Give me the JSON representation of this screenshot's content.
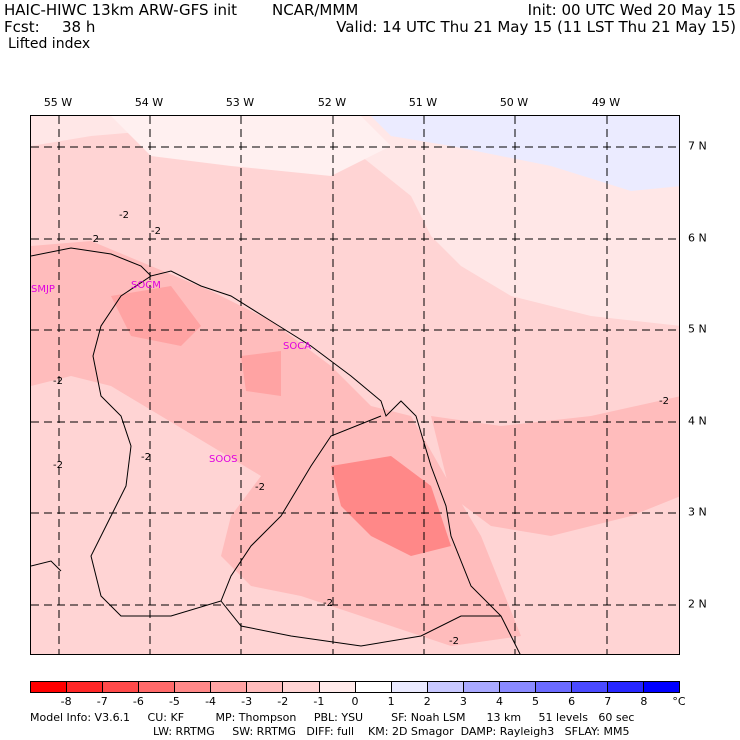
{
  "header": {
    "model": "HAIC-HIWC 13km ARW-GFS init",
    "org": "NCAR/MMM",
    "fcst_label": "Fcst:",
    "fcst_value": "38 h",
    "init": "Init: 00 UTC Wed 20 May 15",
    "valid": "Valid: 14 UTC Thu 21 May 15 (11 LST Thu 21 May 15)",
    "field": "Lifted index"
  },
  "map": {
    "lon_labels": [
      "55 W",
      "54 W",
      "53 W",
      "52 W",
      "51 W",
      "50 W",
      "49 W"
    ],
    "lat_labels": [
      "7 N",
      "6 N",
      "5 N",
      "4 N",
      "3 N",
      "2 N"
    ],
    "stations": [
      "SMJP",
      "SOCM",
      "SOCA",
      "SOOS"
    ],
    "contour_labels": [
      "-2",
      "-2",
      "-2",
      "-2",
      "-2",
      "-2",
      "-2",
      "-2",
      "-2",
      "-2"
    ]
  },
  "colorbar": {
    "colors": [
      "#ff0000",
      "#ff2727",
      "#ff4a4a",
      "#ff6a6a",
      "#ff8888",
      "#ffa3a3",
      "#ffbcbc",
      "#ffd4d4",
      "#ffeaea",
      "#ffffff",
      "#eaeaff",
      "#c8c8ff",
      "#a9a9ff",
      "#8a8aff",
      "#6b6bff",
      "#4a4aff",
      "#2727ff",
      "#0000ff"
    ],
    "ticks": [
      "-8",
      "-7",
      "-6",
      "-5",
      "-4",
      "-3",
      "-2",
      "-1",
      "0",
      "1",
      "2",
      "3",
      "4",
      "5",
      "6",
      "7",
      "8"
    ],
    "unit": "°C"
  },
  "footer": {
    "line1": "Model Info: V3.6.1     CU: KF         MP: Thompson     PBL: YSU        SF: Noah LSM      13 km     51 levels   60 sec",
    "line2": "LW: RRTMG     SW: RRTMG   DIFF: full    KM: 2D Smagor  DAMP: Rayleigh3   SFLAY: MM5"
  }
}
